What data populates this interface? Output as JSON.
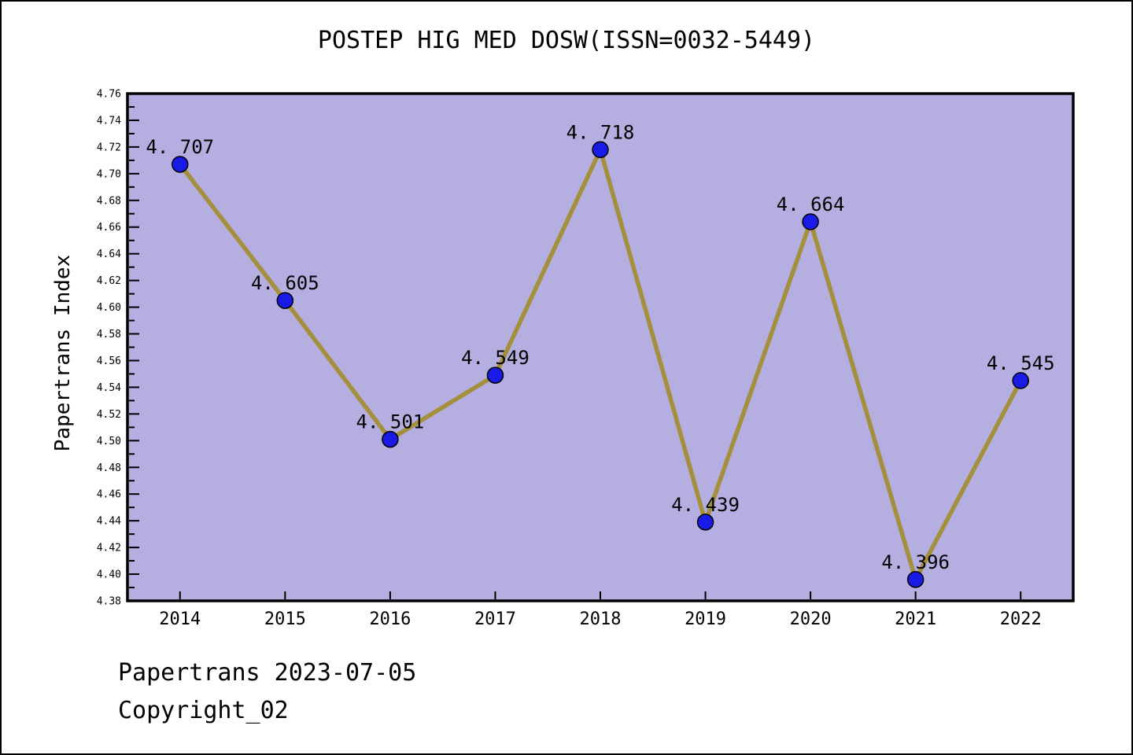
{
  "figure": {
    "title": "POSTEP HIG MED DOSW(ISSN=0032-5449)",
    "footer_line1": "Papertrans 2023-07-05",
    "footer_line2": "Copyright_02"
  },
  "chart_data": {
    "type": "line",
    "title": "POSTEP HIG MED DOSW(ISSN=0032-5449)",
    "xlabel": "",
    "ylabel": "Papertrans Index",
    "categories": [
      "2014",
      "2015",
      "2016",
      "2017",
      "2018",
      "2019",
      "2020",
      "2021",
      "2022"
    ],
    "series": [
      {
        "name": "Papertrans Index",
        "values": [
          4.707,
          4.605,
          4.501,
          4.549,
          4.718,
          4.439,
          4.664,
          4.396,
          4.545
        ]
      }
    ],
    "point_labels": [
      "4. 707",
      "4. 605",
      "4. 501",
      "4. 549",
      "4. 718",
      "4. 439",
      "4. 664",
      "4. 396",
      "4. 545"
    ],
    "ylim": [
      4.38,
      4.76
    ],
    "y_major_step": 0.02,
    "y_minor_step": 0.01,
    "y_tick_decimals": 2,
    "grid": false,
    "legend": "none",
    "colors": {
      "plot_bg": "#b5aee0",
      "line": "#a48f3c",
      "marker_fill": "#1a1ae6",
      "marker_edge": "#000000",
      "frame": "#000000",
      "text": "#000000"
    }
  }
}
